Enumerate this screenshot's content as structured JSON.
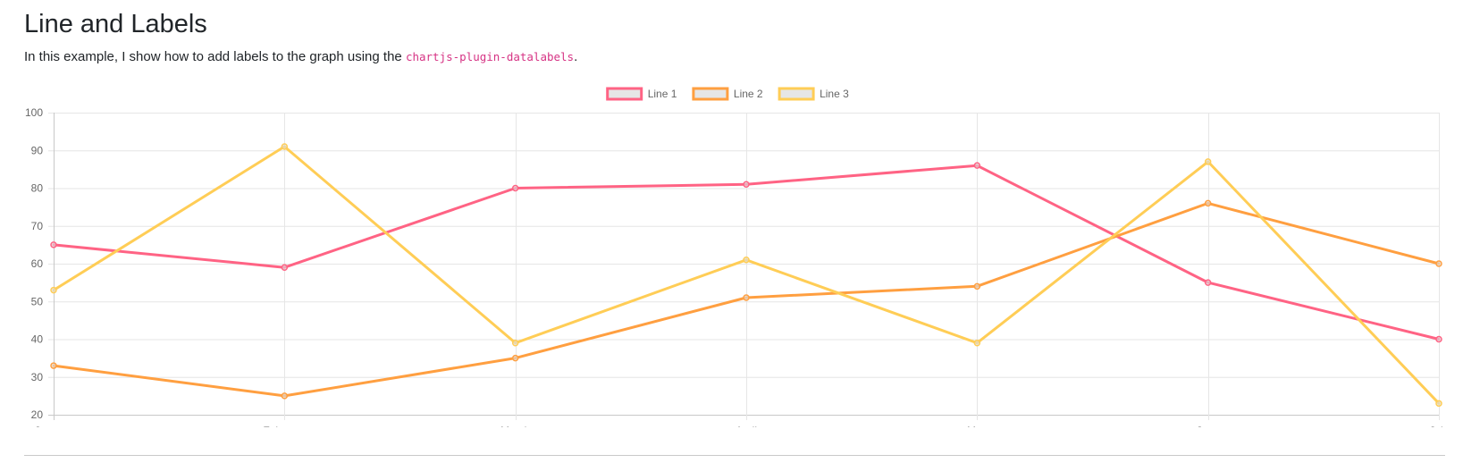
{
  "page": {
    "title": "Line and Labels",
    "intro_text": "In this example, I show how to add labels to the graph using the ",
    "intro_code": "chartjs-plugin-datalabels",
    "intro_end": "."
  },
  "chart_data": {
    "type": "line",
    "categories": [
      "January",
      "February",
      "March",
      "April",
      "May",
      "June",
      "July"
    ],
    "series": [
      {
        "name": "Line 1",
        "color": "#ff6384",
        "values": [
          65,
          59,
          80,
          81,
          86,
          55,
          40
        ]
      },
      {
        "name": "Line 2",
        "color": "#ff9f40",
        "values": [
          33,
          25,
          35,
          51,
          54,
          76,
          60
        ]
      },
      {
        "name": "Line 3",
        "color": "#ffcd56",
        "values": [
          53,
          91,
          39,
          61,
          39,
          87,
          23
        ]
      }
    ],
    "ylim": [
      20,
      100
    ],
    "yticks": [
      20,
      30,
      40,
      50,
      60,
      70,
      80,
      90,
      100
    ],
    "legend_position": "top",
    "grid": true
  }
}
